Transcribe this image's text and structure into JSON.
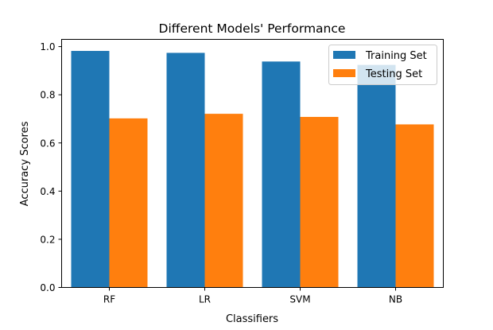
{
  "chart_data": {
    "type": "bar",
    "title": "Different Models' Performance",
    "xlabel": "Classifiers",
    "ylabel": "Accuracy Scores",
    "categories": [
      "RF",
      "LR",
      "SVM",
      "NB"
    ],
    "series": [
      {
        "name": "Training Set",
        "color": "#1f77b4",
        "values": [
          0.982,
          0.974,
          0.938,
          0.924
        ]
      },
      {
        "name": "Testing Set",
        "color": "#ff7f0e",
        "values": [
          0.702,
          0.721,
          0.708,
          0.677
        ]
      }
    ],
    "ylim": [
      0,
      1.03
    ],
    "yticks": [
      0.0,
      0.2,
      0.4,
      0.6,
      0.8,
      1.0
    ],
    "ytick_labels": [
      "0.0",
      "0.2",
      "0.4",
      "0.6",
      "0.8",
      "1.0"
    ],
    "legend_position": "top-right",
    "grid": false
  }
}
